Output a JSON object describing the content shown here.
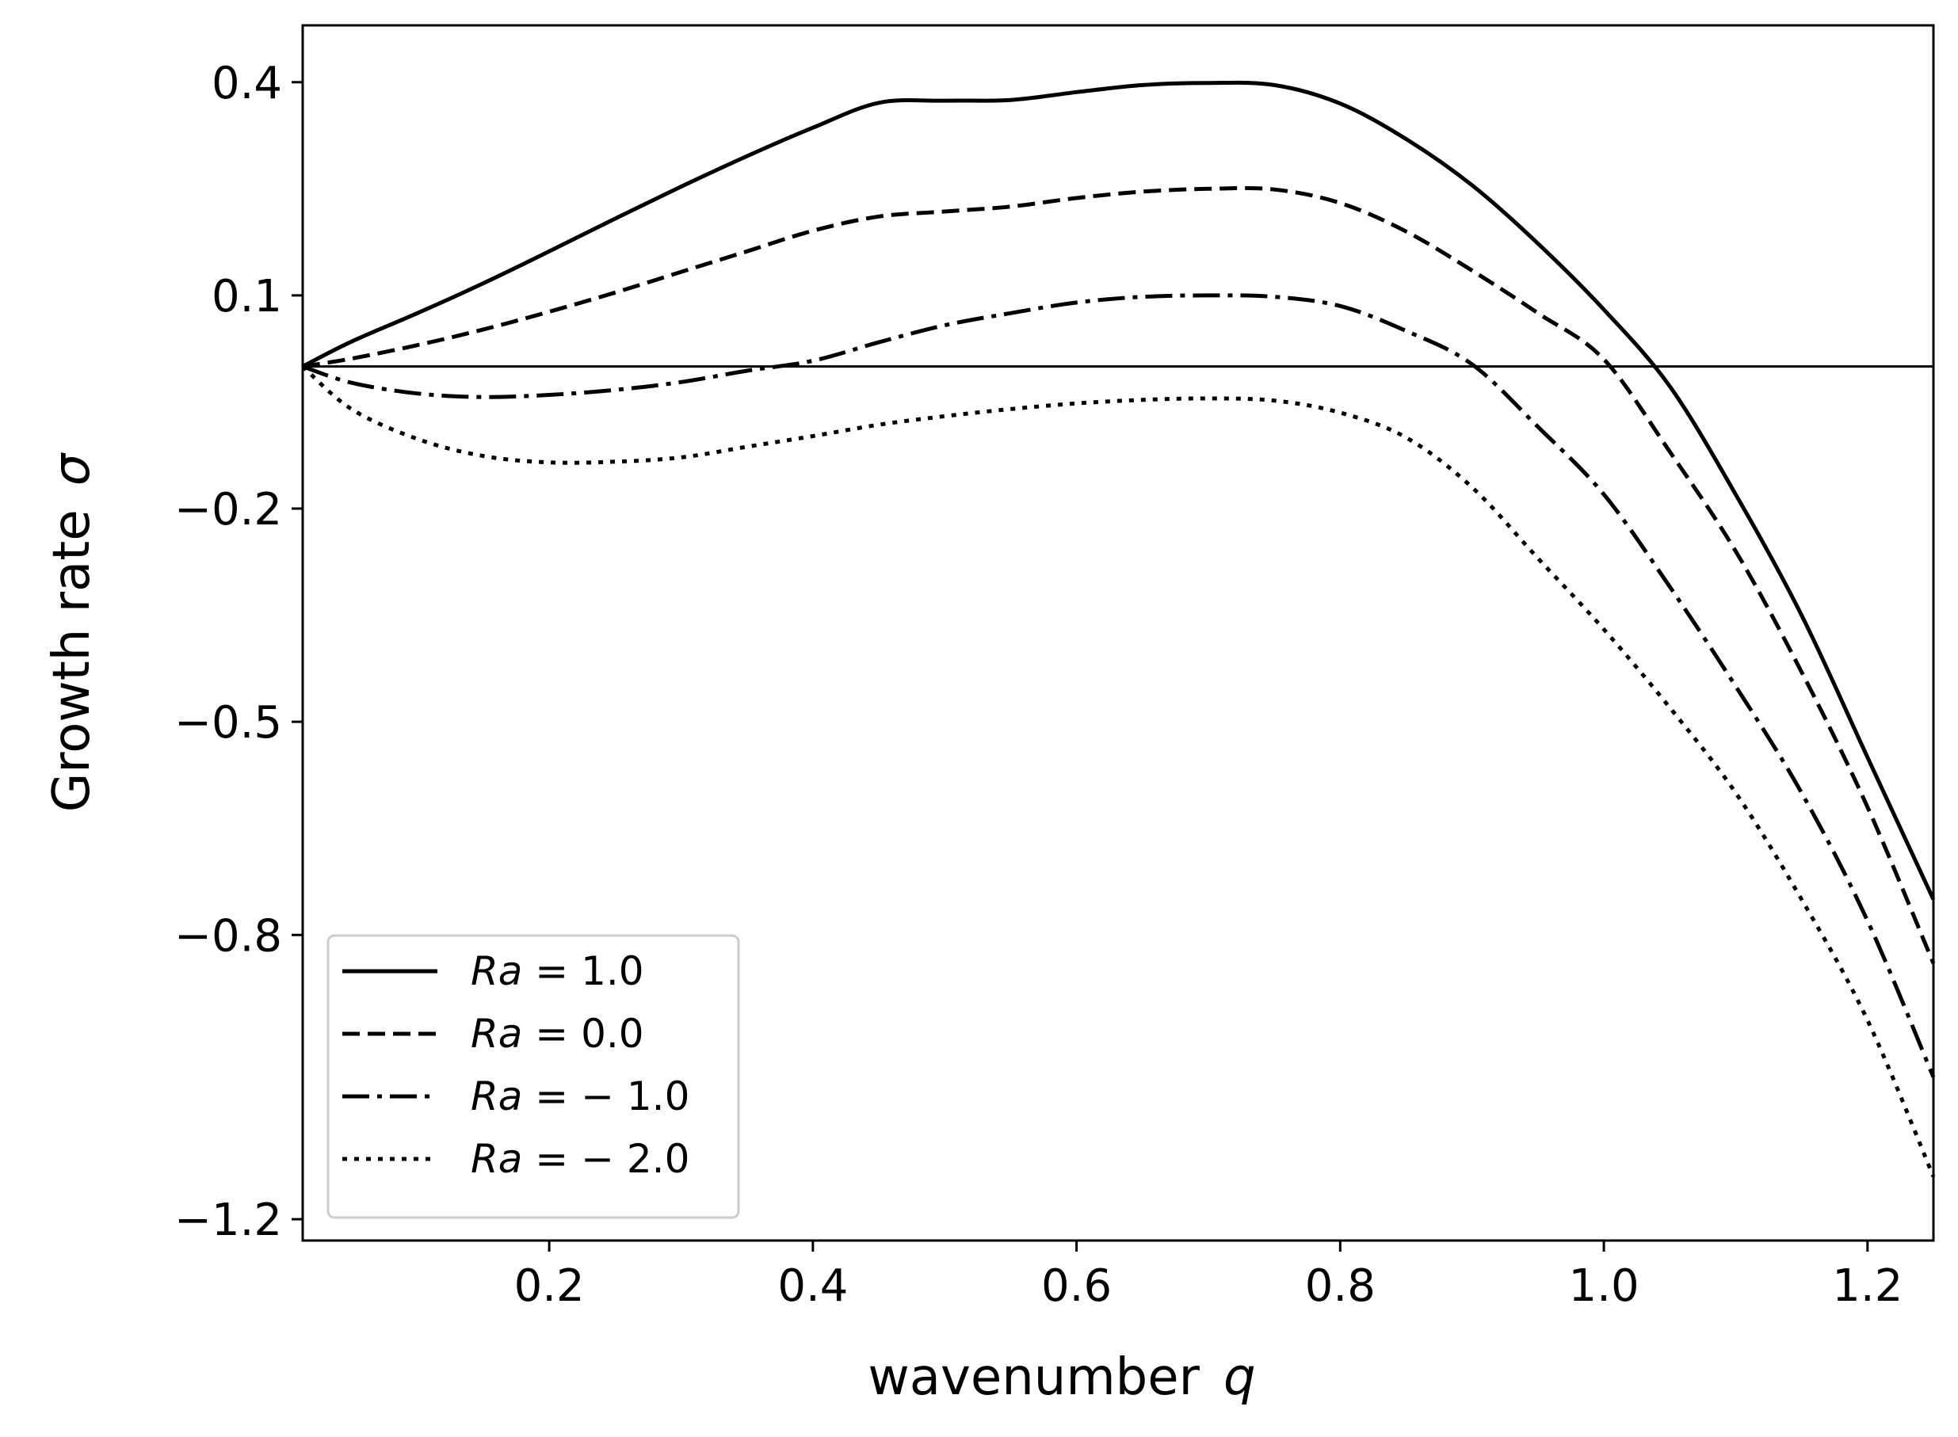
{
  "chart_data": {
    "type": "line",
    "title": "",
    "xlabel": "wavenumber",
    "xlabel_symbol": "q",
    "ylabel": "Growth rate",
    "ylabel_symbol": "σ",
    "xlim": [
      0.013,
      1.25
    ],
    "ylim": [
      -1.23,
      0.48
    ],
    "xticks": [
      0.2,
      0.4,
      0.6,
      0.8,
      1.0,
      1.2
    ],
    "xtick_labels": [
      "0.2",
      "0.4",
      "0.6",
      "0.8",
      "1.0",
      "1.2"
    ],
    "yticks": [
      0.4,
      0.1,
      -0.2,
      -0.5,
      -0.8,
      -1.2
    ],
    "ytick_labels": [
      "0.4",
      "0.1",
      "−0.2",
      "−0.5",
      "−0.8",
      "−1.2"
    ],
    "hline": 0.0,
    "grid": false,
    "legend_position": "lower-left",
    "x": [
      0.013,
      0.05,
      0.1,
      0.15,
      0.2,
      0.25,
      0.3,
      0.35,
      0.4,
      0.45,
      0.5,
      0.55,
      0.6,
      0.65,
      0.7,
      0.75,
      0.8,
      0.85,
      0.9,
      0.95,
      1.0,
      1.05,
      1.1,
      1.15,
      1.2,
      1.25
    ],
    "series": [
      {
        "name": "Ra = 1.0",
        "legend_prefix": "Ra",
        "legend_value": " = 1.0",
        "style": "solid",
        "values": [
          0.0,
          0.035,
          0.075,
          0.117,
          0.162,
          0.208,
          0.253,
          0.296,
          0.336,
          0.371,
          0.374,
          0.375,
          0.386,
          0.396,
          0.399,
          0.396,
          0.37,
          0.32,
          0.255,
          0.173,
          0.08,
          -0.028,
          -0.18,
          -0.35,
          -0.55,
          -0.75
        ]
      },
      {
        "name": "Ra = 0.0",
        "legend_prefix": "Ra",
        "legend_value": " = 0.0",
        "style": "dashed",
        "values": [
          0.0,
          0.011,
          0.03,
          0.052,
          0.077,
          0.104,
          0.133,
          0.162,
          0.191,
          0.211,
          0.218,
          0.225,
          0.237,
          0.246,
          0.25,
          0.249,
          0.23,
          0.19,
          0.135,
          0.075,
          0.01,
          -0.12,
          -0.26,
          -0.43,
          -0.62,
          -0.84
        ]
      },
      {
        "name": "Ra = −1.0",
        "legend_prefix": "Ra",
        "legend_value": " = − 1.0",
        "style": "dashdot",
        "values": [
          0.0,
          -0.023,
          -0.038,
          -0.043,
          -0.04,
          -0.033,
          -0.022,
          -0.006,
          0.008,
          0.034,
          0.058,
          0.075,
          0.09,
          0.098,
          0.1,
          0.098,
          0.085,
          0.05,
          0.003,
          -0.085,
          -0.18,
          -0.31,
          -0.45,
          -0.6,
          -0.78,
          -1.0
        ]
      },
      {
        "name": "Ra = −2.0",
        "legend_prefix": "Ra",
        "legend_value": " = − 2.0",
        "style": "dotted",
        "values": [
          0.0,
          -0.06,
          -0.102,
          -0.126,
          -0.135,
          -0.134,
          -0.128,
          -0.113,
          -0.098,
          -0.082,
          -0.07,
          -0.06,
          -0.052,
          -0.047,
          -0.045,
          -0.048,
          -0.065,
          -0.1,
          -0.17,
          -0.27,
          -0.37,
          -0.48,
          -0.6,
          -0.75,
          -0.92,
          -1.14
        ]
      }
    ]
  }
}
